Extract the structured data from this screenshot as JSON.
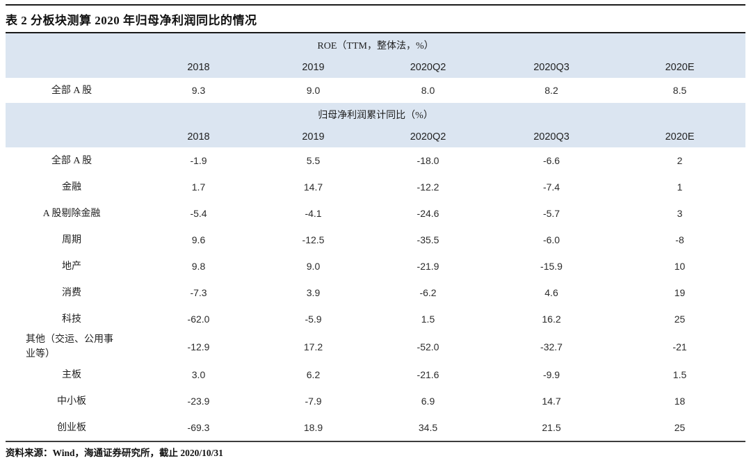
{
  "title": "表 2 分板块测算 2020 年归母净利润同比的情况",
  "footer": "资料来源：Wind，海通证券研究所，截止 2020/10/31",
  "colors": {
    "band_background": "#dbe5f1",
    "text": "#262626",
    "rule": "#1a1a1a"
  },
  "chart_data": {
    "type": "table",
    "title": "表 2 分板块测算 2020 年归母净利润同比的情况",
    "sections": [
      {
        "header": "ROE（TTM，整体法，%）",
        "columns": [
          "2018",
          "2019",
          "2020Q2",
          "2020Q3",
          "2020E"
        ],
        "rows": [
          {
            "label": "全部 A 股",
            "values": [
              "9.3",
              "9.0",
              "8.0",
              "8.2",
              "8.5"
            ]
          }
        ]
      },
      {
        "header": "归母净利润累计同比（%）",
        "columns": [
          "2018",
          "2019",
          "2020Q2",
          "2020Q3",
          "2020E"
        ],
        "rows": [
          {
            "label": "全部 A 股",
            "values": [
              "-1.9",
              "5.5",
              "-18.0",
              "-6.6",
              "2"
            ]
          },
          {
            "label": "金融",
            "values": [
              "1.7",
              "14.7",
              "-12.2",
              "-7.4",
              "1"
            ]
          },
          {
            "label": "A 股剔除金融",
            "values": [
              "-5.4",
              "-4.1",
              "-24.6",
              "-5.7",
              "3"
            ]
          },
          {
            "label": "周期",
            "values": [
              "9.6",
              "-12.5",
              "-35.5",
              "-6.0",
              "-8"
            ]
          },
          {
            "label": "地产",
            "values": [
              "9.8",
              "9.0",
              "-21.9",
              "-15.9",
              "10"
            ]
          },
          {
            "label": "消费",
            "values": [
              "-7.3",
              "3.9",
              "-6.2",
              "4.6",
              "19"
            ]
          },
          {
            "label": "科技",
            "values": [
              "-62.0",
              "-5.9",
              "1.5",
              "16.2",
              "25"
            ]
          },
          {
            "label": "其他（交运、公用事业等）",
            "values": [
              "-12.9",
              "17.2",
              "-52.0",
              "-32.7",
              "-21"
            ]
          },
          {
            "label": "主板",
            "values": [
              "3.0",
              "6.2",
              "-21.6",
              "-9.9",
              "1.5"
            ]
          },
          {
            "label": "中小板",
            "values": [
              "-23.9",
              "-7.9",
              "6.9",
              "14.7",
              "18"
            ]
          },
          {
            "label": "创业板",
            "values": [
              "-69.3",
              "18.9",
              "34.5",
              "21.5",
              "25"
            ]
          }
        ]
      }
    ]
  }
}
